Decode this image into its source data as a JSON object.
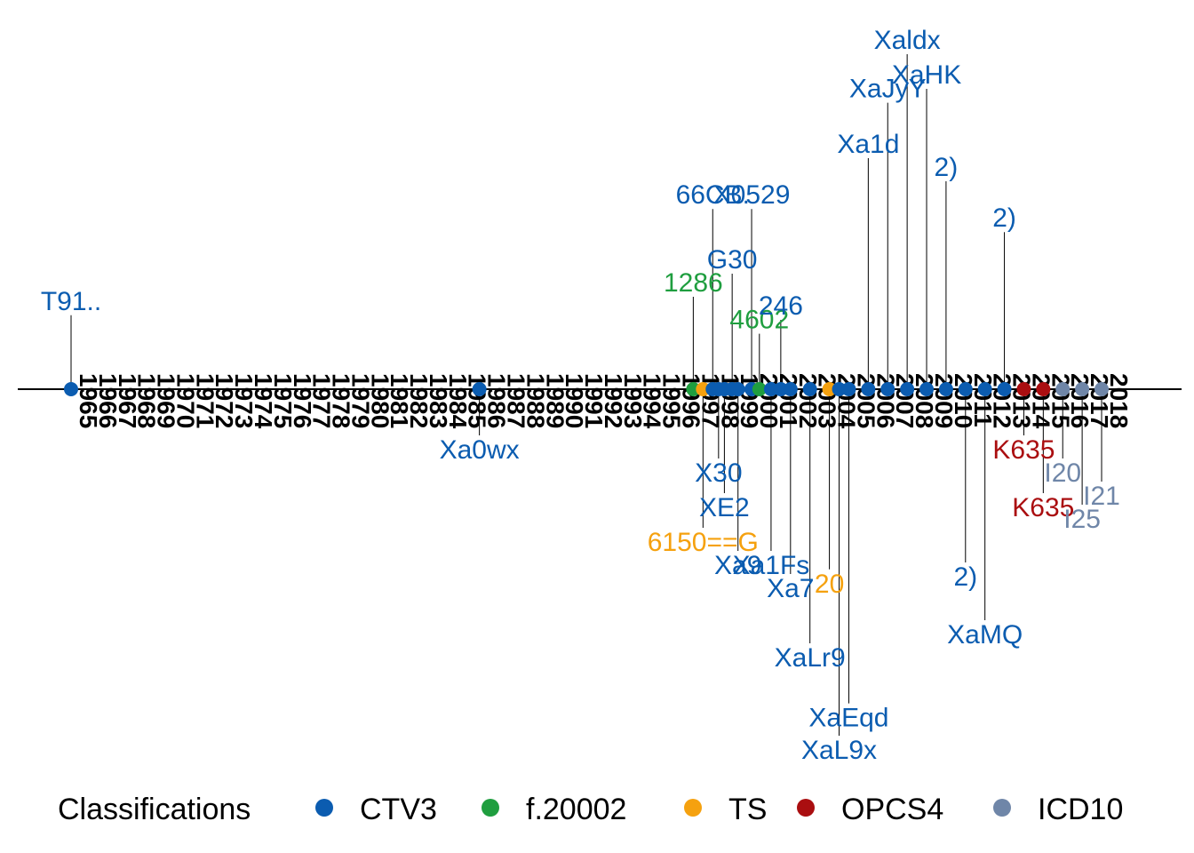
{
  "colors": {
    "CTV3": "#0b5cb0",
    "f.20002": "#1f9e3f",
    "TS": "#f5a10f",
    "OPCS4": "#aa0e10",
    "ICD10": "#6f86a8"
  },
  "legend": {
    "title": "Classifications",
    "items": [
      "CTV3",
      "f.20002",
      "TS",
      "OPCS4",
      "ICD10"
    ]
  },
  "chart_data": {
    "type": "timeline",
    "grid": false,
    "legend_position": "bottom",
    "x_tick_labels": [
      "1965",
      "1966",
      "1967",
      "1968",
      "1969",
      "1970",
      "1971",
      "1972",
      "1973",
      "1974",
      "1975",
      "1976",
      "1977",
      "1978",
      "1979",
      "1980",
      "1981",
      "1982",
      "1983",
      "1984",
      "1985",
      "1986",
      "1987",
      "1988",
      "1989",
      "1990",
      "1991",
      "1992",
      "1993",
      "1994",
      "1995",
      "1996",
      "1997",
      "1998",
      "1999",
      "2000",
      "2001",
      "2002",
      "2003",
      "2004",
      "2005",
      "2006",
      "2007",
      "2008",
      "2009",
      "2010",
      "2011",
      "2012",
      "2013",
      "2014",
      "2015",
      "2016",
      "2017",
      "2018"
    ],
    "events": [
      {
        "year": 1965.0,
        "class": "CTV3",
        "label": "T91..",
        "side": "up",
        "level": 0.32
      },
      {
        "year": 1986.0,
        "class": "CTV3",
        "label": "Xa0wx",
        "side": "down",
        "level": 0.2
      },
      {
        "year": 1997.0,
        "class": "f.20002",
        "label": "1286",
        "side": "up",
        "level": 0.4
      },
      {
        "year": 1997.5,
        "class": "TS",
        "label": "6150==G",
        "side": "down",
        "level": 0.6
      },
      {
        "year": 1998.0,
        "class": "CTV3",
        "label": "66CB.",
        "side": "up",
        "level": 0.78
      },
      {
        "year": 1998.3,
        "class": "CTV3",
        "label": "X30",
        "side": "down",
        "level": 0.3
      },
      {
        "year": 1998.6,
        "class": "CTV3",
        "label": "XE2",
        "side": "down",
        "level": 0.45
      },
      {
        "year": 1999.0,
        "class": "CTV3",
        "label": "G30",
        "side": "up",
        "level": 0.5
      },
      {
        "year": 1999.3,
        "class": "CTV3",
        "label": "Xa9",
        "side": "down",
        "level": 0.7
      },
      {
        "year": 2000.0,
        "class": "CTV3",
        "label": "X0529",
        "side": "up",
        "level": 0.78
      },
      {
        "year": 2000.4,
        "class": "f.20002",
        "label": "4602",
        "side": "up",
        "level": 0.24
      },
      {
        "year": 2001.0,
        "class": "CTV3",
        "label": "Xa1Fs",
        "side": "down",
        "level": 0.7
      },
      {
        "year": 2001.5,
        "class": "CTV3",
        "label": "246",
        "side": "up",
        "level": 0.3
      },
      {
        "year": 2002.0,
        "class": "CTV3",
        "label": "Xa7",
        "side": "down",
        "level": 0.8
      },
      {
        "year": 2003.0,
        "class": "CTV3",
        "label": "XaLr9",
        "side": "down",
        "level": 1.1
      },
      {
        "year": 2004.0,
        "class": "TS",
        "label": "20",
        "side": "down",
        "level": 0.78
      },
      {
        "year": 2004.5,
        "class": "CTV3",
        "label": "XaL9x",
        "side": "down",
        "level": 1.5
      },
      {
        "year": 2005.0,
        "class": "CTV3",
        "label": "XaEqd",
        "side": "down",
        "level": 1.36
      },
      {
        "year": 2006.0,
        "class": "CTV3",
        "label": "Xa1d",
        "side": "up",
        "level": 1.0
      },
      {
        "year": 2007.0,
        "class": "CTV3",
        "label": "XaJyY",
        "side": "up",
        "level": 1.24
      },
      {
        "year": 2008.0,
        "class": "CTV3",
        "label": "Xaldx",
        "side": "up",
        "level": 1.45
      },
      {
        "year": 2009.0,
        "class": "CTV3",
        "label": "XaHK",
        "side": "up",
        "level": 1.3
      },
      {
        "year": 2010.0,
        "class": "CTV3",
        "label": "2)",
        "side": "up",
        "level": 0.9
      },
      {
        "year": 2011.0,
        "class": "CTV3",
        "label": "2)",
        "side": "down",
        "level": 0.75
      },
      {
        "year": 2012.0,
        "class": "CTV3",
        "label": "XaMQ",
        "side": "down",
        "level": 1.0
      },
      {
        "year": 2013.0,
        "class": "CTV3",
        "label": "2)",
        "side": "up",
        "level": 0.68
      },
      {
        "year": 2014.0,
        "class": "OPCS4",
        "label": "K635",
        "side": "down",
        "level": 0.2
      },
      {
        "year": 2015.0,
        "class": "OPCS4",
        "label": "K635",
        "side": "down",
        "level": 0.45
      },
      {
        "year": 2016.0,
        "class": "ICD10",
        "label": "I20",
        "side": "down",
        "level": 0.3
      },
      {
        "year": 2017.0,
        "class": "ICD10",
        "label": "I25",
        "side": "down",
        "level": 0.5
      },
      {
        "year": 2018.0,
        "class": "ICD10",
        "label": "I21",
        "side": "down",
        "level": 0.4
      }
    ]
  }
}
